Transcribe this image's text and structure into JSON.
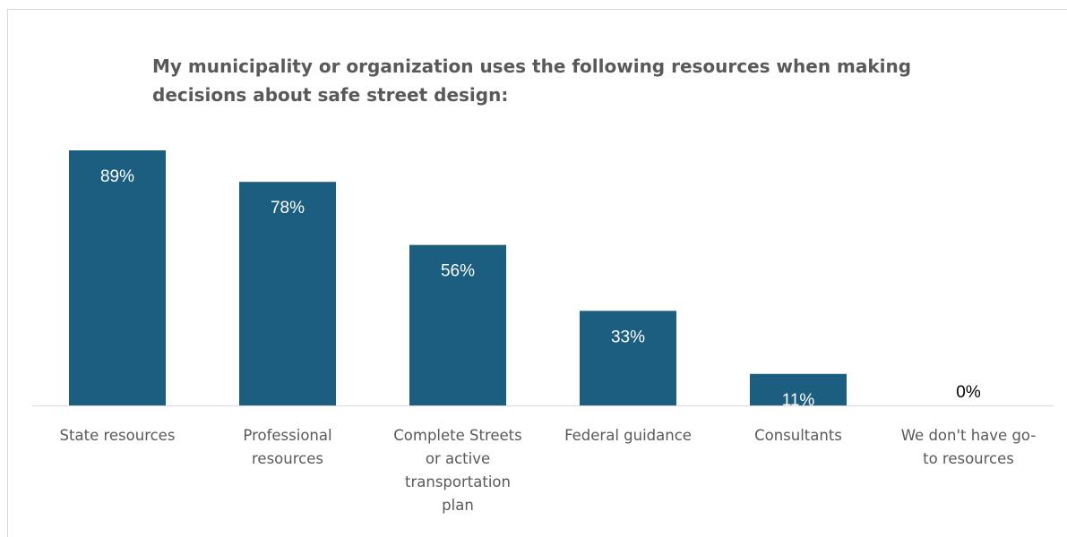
{
  "chart_data": {
    "type": "bar",
    "title": "My municipality or organization uses the following resources when making decisions about safe street design:",
    "categories": [
      "State resources",
      "Professional resources",
      "Complete Streets or active transportation plan",
      "Federal guidance",
      "Consultants",
      "We don't have go-to resources"
    ],
    "category_lines": [
      [
        "State resources"
      ],
      [
        "Professional",
        "resources"
      ],
      [
        "Complete Streets",
        "or active",
        "transportation",
        "plan"
      ],
      [
        "Federal guidance"
      ],
      [
        "Consultants"
      ],
      [
        "We don't have go-",
        "to resources"
      ]
    ],
    "values": [
      89,
      78,
      56,
      33,
      11,
      0
    ],
    "data_labels": [
      "89%",
      "78%",
      "56%",
      "33%",
      "11%",
      "0%"
    ],
    "ylim": [
      0,
      100
    ],
    "grid": false,
    "legend": "none",
    "bar_color": "#1b5e80",
    "inside_label_color": "#ffffff",
    "outside_label_color": "#000000",
    "axis_color": "#d9d9d9"
  }
}
